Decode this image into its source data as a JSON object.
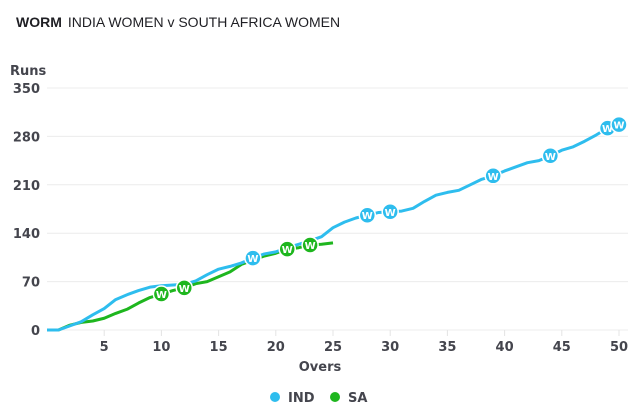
{
  "header": {
    "label": "WORM",
    "match": "INDIA WOMEN v SOUTH AFRICA WOMEN"
  },
  "chart_data": {
    "type": "line",
    "title": "WORM",
    "xlabel": "Overs",
    "ylabel": "Runs",
    "xlim": [
      0,
      50
    ],
    "ylim": [
      0,
      350
    ],
    "xticks": [
      5,
      10,
      15,
      20,
      25,
      30,
      35,
      40,
      45,
      50
    ],
    "yticks": [
      0,
      70,
      140,
      210,
      280,
      350
    ],
    "grid": "horizontal",
    "legend": "bottom-center",
    "series": [
      {
        "name": "IND",
        "color": "#2ebdee",
        "values": [
          0,
          0,
          6,
          12,
          22,
          31,
          44,
          51,
          57,
          62,
          64,
          65,
          66,
          71,
          80,
          88,
          92,
          97,
          104,
          110,
          113,
          119,
          124,
          129,
          135,
          148,
          156,
          162,
          166,
          170,
          171,
          172,
          176,
          186,
          195,
          199,
          202,
          210,
          218,
          223,
          230,
          236,
          242,
          245,
          252,
          260,
          265,
          273,
          282,
          292,
          297
        ],
        "wickets": [
          18,
          28,
          30,
          39,
          44,
          49,
          50
        ]
      },
      {
        "name": "SA",
        "color": "#1eb61e",
        "values": [
          0,
          0,
          7,
          11,
          13,
          17,
          24,
          30,
          39,
          47,
          52,
          57,
          61,
          67,
          70,
          77,
          84,
          95,
          101,
          107,
          111,
          117,
          119,
          123,
          124,
          126
        ],
        "wickets": [
          10,
          12,
          21,
          23
        ]
      }
    ],
    "wicket_marker": "W"
  }
}
